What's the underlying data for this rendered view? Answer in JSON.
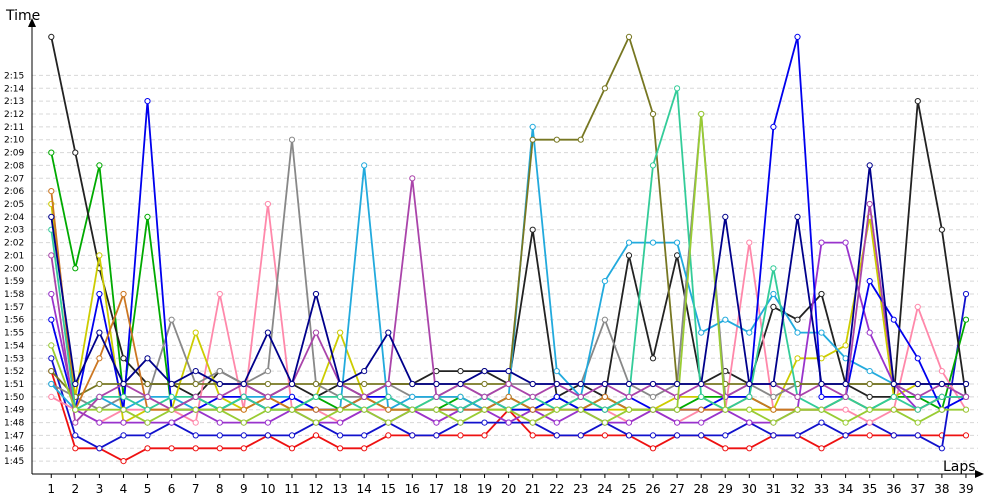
{
  "chart_data": {
    "type": "line",
    "ylabel": "Time",
    "xlabel": "Laps",
    "x": [
      1,
      2,
      3,
      4,
      5,
      6,
      7,
      8,
      9,
      10,
      11,
      12,
      13,
      14,
      15,
      16,
      17,
      18,
      19,
      20,
      21,
      22,
      23,
      24,
      25,
      26,
      27,
      28,
      29,
      30,
      31,
      32,
      33,
      34,
      35,
      36,
      37,
      38,
      39
    ],
    "y_ticks": [
      "1:45",
      "1:46",
      "1:47",
      "1:48",
      "1:49",
      "1:50",
      "1:51",
      "1:52",
      "1:53",
      "1:54",
      "1:55",
      "1:56",
      "1:57",
      "1:58",
      "1:59",
      "2:00",
      "2:01",
      "2:02",
      "2:03",
      "2:04",
      "2:05",
      "2:06",
      "2:07",
      "2:08",
      "2:09",
      "2:10",
      "2:11",
      "2:12",
      "2:13",
      "2:14",
      "2:15"
    ],
    "ylim": [
      "1:44",
      "2:19"
    ],
    "xlim": [
      0.2,
      39.5
    ],
    "grid": "horizontal",
    "series": [
      {
        "color": "#ee1111",
        "values": [
          "1:52",
          "1:46",
          "1:46",
          "1:45",
          "1:46",
          "1:46",
          "1:46",
          "1:46",
          "1:46",
          "1:47",
          "1:46",
          "1:47",
          "1:46",
          "1:46",
          "1:47",
          "1:47",
          "1:47",
          "1:47",
          "1:47",
          "1:49",
          "1:47",
          "1:47",
          "1:47",
          "1:47",
          "1:47",
          "1:46",
          "1:47",
          "1:47",
          "1:46",
          "1:46",
          "1:47",
          "1:47",
          "1:46",
          "1:47",
          "1:47",
          "1:47",
          "1:47",
          "1:47",
          "1:47"
        ]
      },
      {
        "color": "#1111cc",
        "values": [
          "1:53",
          "1:47",
          "1:46",
          "1:47",
          "1:47",
          "1:48",
          "1:47",
          "1:47",
          "1:47",
          "1:47",
          "1:47",
          "1:48",
          "1:47",
          "1:47",
          "1:48",
          "1:47",
          "1:47",
          "1:48",
          "1:48",
          "1:48",
          "1:48",
          "1:47",
          "1:47",
          "1:48",
          "1:47",
          "1:47",
          "1:47",
          "1:47",
          "1:47",
          "1:48",
          "1:47",
          "1:47",
          "1:48",
          "1:47",
          "1:48",
          "1:47",
          "1:47",
          "1:46",
          "1:58"
        ]
      },
      {
        "color": "#00aa00",
        "values": [
          "2:09",
          "2:00",
          "2:08",
          "1:50",
          "2:04",
          "1:49",
          "1:50",
          "1:49",
          "1:50",
          "1:49",
          "1:49",
          "1:50",
          "1:49",
          "1:50",
          "1:49",
          "1:49",
          "1:49",
          "1:50",
          "1:49",
          "1:50",
          "1:49",
          "1:50",
          "1:49",
          "1:50",
          "1:49",
          "1:49",
          "1:49",
          "1:50",
          "1:50",
          "1:50",
          "1:49",
          "1:49",
          "1:49",
          "1:50",
          "1:49",
          "1:50",
          "1:50",
          "1:49",
          "1:56"
        ]
      },
      {
        "color": "#222222",
        "values": [
          "2:18",
          "2:09",
          "2:00",
          "1:53",
          "1:51",
          "1:51",
          "1:50",
          "1:52",
          "1:51",
          "1:50",
          "1:51",
          "1:50",
          "1:51",
          "1:50",
          "1:51",
          "1:51",
          "1:52",
          "1:52",
          "1:52",
          "1:51",
          "2:03",
          "1:50",
          "1:51",
          "1:50",
          "2:01",
          "1:53",
          "2:01",
          "1:51",
          "1:52",
          "1:51",
          "1:57",
          "1:56",
          "1:58",
          "1:51",
          "1:50",
          "1:50",
          "2:13",
          "2:03",
          "1:50"
        ]
      },
      {
        "color": "#ff88aa",
        "values": [
          "1:50",
          "1:49",
          "1:48",
          "1:49",
          "1:49",
          "1:49",
          "1:48",
          "1:58",
          "1:49",
          "2:05",
          "1:49",
          "1:49",
          "1:48",
          "1:49",
          "1:49",
          "1:49",
          "1:48",
          "1:49",
          "1:49",
          "1:49",
          "1:48",
          "1:49",
          "1:49",
          "1:49",
          "1:48",
          "1:49",
          "1:48",
          "1:49",
          "1:49",
          "2:02",
          "1:49",
          "1:49",
          "1:49",
          "1:49",
          "1:48",
          "1:49",
          "1:57",
          "1:52",
          "1:49"
        ]
      },
      {
        "color": "#cccc00",
        "values": [
          "2:05",
          "1:50",
          "2:01",
          "1:48",
          "1:49",
          "1:49",
          "1:55",
          "1:50",
          "1:49",
          "1:50",
          "1:49",
          "1:50",
          "1:55",
          "1:50",
          "1:49",
          "1:49",
          "1:50",
          "1:50",
          "1:49",
          "1:49",
          "1:49",
          "1:49",
          "1:50",
          "1:49",
          "1:49",
          "1:49",
          "1:50",
          "1:50",
          "1:49",
          "1:49",
          "1:49",
          "1:53",
          "1:53",
          "1:54",
          "2:04",
          "1:50",
          "1:51",
          "1:51",
          "1:51"
        ]
      },
      {
        "color": "#888888",
        "values": [
          "1:51",
          "1:50",
          "1:49",
          "1:50",
          "1:50",
          "1:56",
          "1:51",
          "1:52",
          "1:51",
          "1:52",
          "2:10",
          "1:51",
          "1:50",
          "1:50",
          "1:51",
          "1:50",
          "1:50",
          "1:51",
          "1:50",
          "1:51",
          "1:51",
          "1:51",
          "1:51",
          "1:56",
          "1:51",
          "1:50",
          "1:51",
          "2:12",
          "1:50",
          "1:51",
          "1:50",
          "1:51",
          "1:51",
          "1:51",
          "1:51",
          "1:51",
          "1:51",
          "1:51",
          "1:51"
        ]
      },
      {
        "color": "#22aadd",
        "values": [
          "1:51",
          "1:49",
          "1:50",
          "1:49",
          "1:50",
          "1:50",
          "1:49",
          "1:49",
          "1:50",
          "1:50",
          "1:50",
          "1:49",
          "1:49",
          "2:08",
          "1:49",
          "1:50",
          "1:50",
          "1:50",
          "1:49",
          "1:50",
          "2:11",
          "1:52",
          "1:50",
          "1:59",
          "2:02",
          "2:02",
          "2:02",
          "1:55",
          "1:56",
          "1:55",
          "1:58",
          "1:55",
          "1:55",
          "1:53",
          "1:52",
          "1:51",
          "1:50",
          "1:50",
          "1:50"
        ]
      },
      {
        "color": "#9933cc",
        "values": [
          "1:58",
          "1:49",
          "1:48",
          "1:48",
          "1:48",
          "1:48",
          "1:49",
          "1:48",
          "1:48",
          "1:48",
          "1:49",
          "1:48",
          "1:48",
          "1:49",
          "1:48",
          "1:49",
          "1:48",
          "1:49",
          "1:49",
          "1:48",
          "1:49",
          "1:48",
          "1:49",
          "1:48",
          "1:48",
          "1:49",
          "1:48",
          "1:48",
          "1:49",
          "1:48",
          "1:48",
          "1:49",
          "2:02",
          "2:02",
          "1:55",
          "1:51",
          "1:49",
          "1:50",
          "1:50"
        ]
      },
      {
        "color": "#0000ee",
        "values": [
          "1:56",
          "1:49",
          "1:58",
          "1:49",
          "2:13",
          "1:49",
          "1:49",
          "1:50",
          "1:50",
          "1:49",
          "1:50",
          "1:49",
          "1:49",
          "1:50",
          "1:50",
          "1:49",
          "1:49",
          "1:49",
          "1:50",
          "1:49",
          "1:49",
          "1:50",
          "1:49",
          "1:49",
          "1:50",
          "1:49",
          "1:49",
          "1:49",
          "1:50",
          "1:50",
          "2:11",
          "2:18",
          "1:50",
          "1:50",
          "1:59",
          "1:56",
          "1:53",
          "1:49",
          "1:50"
        ]
      },
      {
        "color": "#777722",
        "values": [
          "1:52",
          "1:50",
          "1:51",
          "1:51",
          "1:51",
          "1:51",
          "1:51",
          "1:51",
          "1:51",
          "1:51",
          "1:51",
          "1:51",
          "1:51",
          "1:51",
          "1:51",
          "1:51",
          "1:51",
          "1:51",
          "1:51",
          "1:51",
          "2:10",
          "2:10",
          "2:10",
          "2:14",
          "2:18",
          "2:12",
          "1:51",
          "1:51",
          "1:51",
          "1:51",
          "1:51",
          "1:51",
          "1:51",
          "1:51",
          "1:51",
          "1:51",
          "1:51",
          "1:51",
          "1:51"
        ]
      },
      {
        "color": "#cc7722",
        "values": [
          "2:06",
          "1:49",
          "1:53",
          "1:58",
          "1:49",
          "1:49",
          "1:49",
          "1:49",
          "1:49",
          "1:50",
          "1:49",
          "1:49",
          "1:49",
          "1:50",
          "1:49",
          "1:49",
          "1:49",
          "1:49",
          "1:49",
          "1:50",
          "1:49",
          "1:49",
          "1:49",
          "1:50",
          "1:49",
          "1:49",
          "1:49",
          "1:49",
          "1:49",
          "1:50",
          "1:49",
          "1:49",
          "1:49",
          "1:50",
          "1:49",
          "1:49",
          "1:49",
          "1:50",
          "1:50"
        ]
      },
      {
        "color": "#33cc99",
        "values": [
          "2:03",
          "1:49",
          "1:50",
          "1:50",
          "1:49",
          "1:50",
          "1:50",
          "1:49",
          "1:50",
          "1:49",
          "1:49",
          "1:50",
          "1:50",
          "1:49",
          "1:50",
          "1:49",
          "1:50",
          "1:49",
          "1:50",
          "1:49",
          "1:50",
          "1:49",
          "1:50",
          "1:49",
          "1:50",
          "2:08",
          "2:14",
          "1:50",
          "1:49",
          "1:50",
          "2:00",
          "1:50",
          "1:49",
          "1:50",
          "1:49",
          "1:50",
          "1:49",
          "1:50",
          "1:50"
        ]
      },
      {
        "color": "#aa44aa",
        "values": [
          "2:01",
          "1:48",
          "1:50",
          "1:51",
          "1:50",
          "1:49",
          "1:50",
          "1:50",
          "1:51",
          "1:50",
          "1:51",
          "1:55",
          "1:51",
          "1:50",
          "1:51",
          "2:07",
          "1:50",
          "1:51",
          "1:50",
          "1:51",
          "1:50",
          "1:51",
          "1:50",
          "1:51",
          "1:50",
          "1:51",
          "1:50",
          "1:51",
          "1:50",
          "1:51",
          "1:51",
          "1:50",
          "1:51",
          "1:50",
          "2:05",
          "1:51",
          "1:50",
          "1:51",
          "1:50"
        ]
      },
      {
        "color": "#99cc33",
        "values": [
          "1:54",
          "1:49",
          "1:49",
          "1:49",
          "1:48",
          "1:49",
          "1:49",
          "1:49",
          "1:48",
          "1:49",
          "1:49",
          "1:48",
          "1:49",
          "1:49",
          "1:48",
          "1:49",
          "1:49",
          "1:48",
          "1:49",
          "1:49",
          "1:48",
          "1:49",
          "1:49",
          "1:48",
          "1:49",
          "1:49",
          "1:49",
          "2:12",
          "1:49",
          "1:49",
          "1:48",
          "1:49",
          "1:49",
          "1:48",
          "1:49",
          "1:49",
          "1:48",
          "1:49",
          "1:49"
        ]
      },
      {
        "color": "#00008b",
        "values": [
          "2:04",
          "1:51",
          "1:55",
          "1:51",
          "1:53",
          "1:51",
          "1:52",
          "1:51",
          "1:51",
          "1:55",
          "1:51",
          "1:58",
          "1:51",
          "1:52",
          "1:55",
          "1:51",
          "1:51",
          "1:51",
          "1:52",
          "1:52",
          "1:51",
          "1:51",
          "1:51",
          "1:51",
          "1:51",
          "1:51",
          "1:51",
          "1:51",
          "2:04",
          "1:51",
          "1:51",
          "2:04",
          "1:51",
          "1:51",
          "2:08",
          "1:51",
          "1:51",
          "1:51",
          "1:51"
        ]
      }
    ]
  }
}
